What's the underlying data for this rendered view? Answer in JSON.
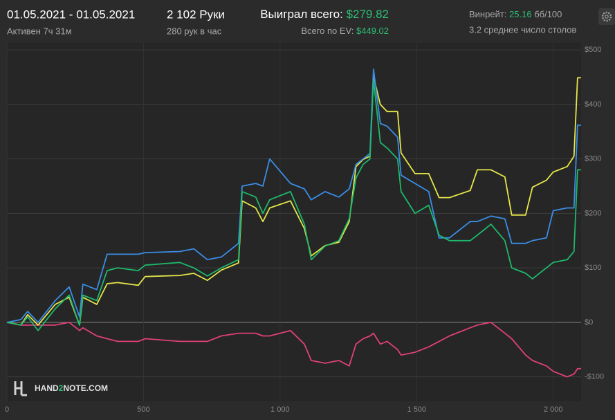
{
  "header": {
    "date_range": "01.05.2021 - 01.05.2021",
    "active": "Активен 7ч 31м",
    "hands": "2 102 Руки",
    "hands_per_hour": "280 рук в час",
    "won_label": "Выиграл всего:",
    "won_value": "$279.82",
    "ev_label": "Всего по EV:",
    "ev_value": "$449.02",
    "winrate_label": "Винрейт:",
    "winrate_value": "25.16",
    "winrate_unit": "бб/100",
    "tables": "3.2 среднее число столов"
  },
  "logo": {
    "part1": "HAND",
    "part2": "2",
    "part3": "NOTE.COM"
  },
  "chart_data": {
    "type": "line",
    "x": [
      0,
      51,
      76,
      114,
      177,
      228,
      266,
      278,
      329,
      367,
      405,
      481,
      506,
      633,
      684,
      734,
      785,
      848,
      861,
      911,
      937,
      962,
      1038,
      1089,
      1114,
      1165,
      1215,
      1253,
      1278,
      1304,
      1329,
      1342,
      1367,
      1392,
      1430,
      1443,
      1494,
      1544,
      1582,
      1620,
      1696,
      1722,
      1772,
      1823,
      1848,
      1899,
      1924,
      1975,
      2000,
      2051,
      2076,
      2089,
      2102
    ],
    "series": [
      {
        "color": "#e0407a",
        "values": [
          0,
          -5,
          -5,
          -5,
          -5,
          0,
          -15,
          -10,
          -25,
          -30,
          -35,
          -35,
          -30,
          -35,
          -35,
          -35,
          -25,
          -20,
          -20,
          -20,
          -25,
          -25,
          -15,
          -40,
          -70,
          -75,
          -70,
          -80,
          -40,
          -30,
          -25,
          -20,
          -40,
          -35,
          -50,
          -60,
          -55,
          -45,
          -35,
          -25,
          -10,
          -5,
          0,
          -20,
          -30,
          -60,
          -70,
          -80,
          -90,
          -100,
          -95,
          -85,
          -85
        ]
      },
      {
        "color": "#e6e64a",
        "values": [
          0,
          -5,
          14,
          -5,
          33,
          46,
          -5,
          46,
          33,
          71,
          73,
          68,
          84,
          86,
          90,
          77,
          96,
          109,
          223,
          210,
          185,
          210,
          223,
          172,
          122,
          141,
          147,
          185,
          286,
          299,
          305,
          451,
          400,
          387,
          387,
          311,
          273,
          273,
          229,
          229,
          242,
          280,
          280,
          267,
          197,
          197,
          248,
          261,
          276,
          286,
          305,
          449,
          449
        ]
      },
      {
        "color": "#3a8ee6",
        "values": [
          0,
          5,
          20,
          0,
          40,
          65,
          10,
          70,
          60,
          125,
          125,
          125,
          128,
          130,
          135,
          115,
          120,
          145,
          250,
          255,
          250,
          300,
          255,
          245,
          225,
          240,
          230,
          245,
          290,
          300,
          310,
          465,
          365,
          360,
          340,
          270,
          255,
          240,
          155,
          155,
          185,
          185,
          195,
          190,
          145,
          145,
          150,
          155,
          205,
          210,
          210,
          362,
          362
        ]
      },
      {
        "color": "#1fb86b",
        "values": [
          0,
          -5,
          10,
          -15,
          25,
          50,
          -5,
          50,
          40,
          95,
          100,
          95,
          105,
          110,
          100,
          85,
          100,
          115,
          240,
          230,
          200,
          225,
          240,
          180,
          115,
          140,
          150,
          190,
          265,
          290,
          300,
          445,
          330,
          320,
          300,
          240,
          200,
          215,
          160,
          150,
          150,
          160,
          180,
          150,
          100,
          90,
          80,
          100,
          110,
          115,
          130,
          280,
          280
        ]
      }
    ],
    "xlim": [
      0,
      2102
    ],
    "ylim": [
      -145,
      513
    ],
    "xticks": [
      0,
      500,
      {
        "value": 1000,
        "label": "1 000"
      },
      {
        "value": 1500,
        "label": "1 500"
      },
      {
        "value": 2000,
        "label": "2 000"
      }
    ],
    "yticks": [
      {
        "value": -100,
        "label": "-$100"
      },
      {
        "value": 0,
        "label": "$0"
      },
      {
        "value": 100,
        "label": "$100"
      },
      {
        "value": 200,
        "label": "$200"
      },
      {
        "value": 300,
        "label": "$300"
      },
      {
        "value": 400,
        "label": "$400"
      },
      {
        "value": 500,
        "label": "$500"
      }
    ],
    "grid": true
  }
}
